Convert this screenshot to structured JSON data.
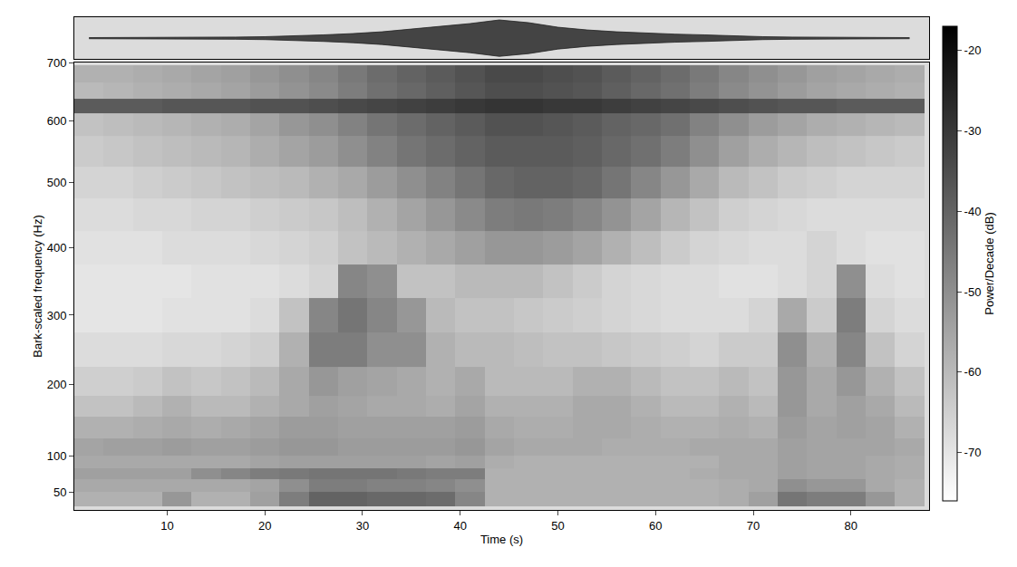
{
  "chart_data": {
    "type": "heatmap",
    "x_label": "Time (s)",
    "y_label": "Bark-scaled frequency (Hz)",
    "xlim": [
      0.5,
      88
    ],
    "ylim": [
      25,
      700
    ],
    "xticks": [
      10,
      20,
      30,
      40,
      50,
      60,
      70,
      80
    ],
    "yticks": [
      50,
      100,
      200,
      300,
      400,
      500,
      600,
      700
    ],
    "grid": false,
    "x": [
      2,
      5,
      8,
      11,
      14,
      17,
      20,
      23,
      26,
      29,
      32,
      35,
      38,
      41,
      44,
      47,
      50,
      53,
      56,
      59,
      62,
      65,
      68,
      71,
      74,
      77,
      80,
      83,
      86
    ],
    "y": [
      40,
      60,
      75,
      90,
      110,
      140,
      170,
      200,
      250,
      300,
      350,
      400,
      450,
      500,
      550,
      600,
      625,
      650,
      680
    ],
    "z": [
      [
        -58,
        -58,
        -58,
        -52,
        -58,
        -58,
        -54,
        -46,
        -40,
        -40,
        -41,
        -41,
        -42,
        -48,
        -58,
        -58,
        -58,
        -58,
        -58,
        -58,
        -58,
        -58,
        -57,
        -54,
        -44,
        -46,
        -46,
        -52,
        -58
      ],
      [
        -56,
        -56,
        -56,
        -56,
        -56,
        -56,
        -55,
        -50,
        -46,
        -46,
        -47,
        -47,
        -48,
        -50,
        -58,
        -58,
        -58,
        -58,
        -58,
        -58,
        -58,
        -58,
        -57,
        -56,
        -50,
        -52,
        -52,
        -56,
        -58
      ],
      [
        -54,
        -54,
        -54,
        -54,
        -50,
        -48,
        -46,
        -45,
        -44,
        -44,
        -44,
        -45,
        -46,
        -46,
        -58,
        -58,
        -58,
        -58,
        -58,
        -58,
        -58,
        -57,
        -56,
        -56,
        -54,
        -55,
        -55,
        -56,
        -57
      ],
      [
        -56,
        -56,
        -56,
        -56,
        -56,
        -56,
        -55,
        -54,
        -54,
        -54,
        -54,
        -54,
        -55,
        -54,
        -57,
        -58,
        -58,
        -58,
        -58,
        -58,
        -58,
        -58,
        -56,
        -56,
        -54,
        -55,
        -55,
        -56,
        -57
      ],
      [
        -55,
        -54,
        -54,
        -53,
        -54,
        -54,
        -53,
        -52,
        -52,
        -53,
        -53,
        -53,
        -53,
        -52,
        -55,
        -56,
        -56,
        -56,
        -57,
        -57,
        -57,
        -56,
        -56,
        -56,
        -54,
        -55,
        -55,
        -55,
        -56
      ],
      [
        -58,
        -58,
        -57,
        -56,
        -57,
        -56,
        -55,
        -53,
        -53,
        -54,
        -54,
        -54,
        -54,
        -53,
        -56,
        -57,
        -57,
        -56,
        -56,
        -57,
        -58,
        -58,
        -57,
        -58,
        -53,
        -55,
        -54,
        -55,
        -58
      ],
      [
        -62,
        -62,
        -60,
        -58,
        -60,
        -60,
        -58,
        -56,
        -54,
        -55,
        -56,
        -56,
        -57,
        -55,
        -58,
        -58,
        -58,
        -56,
        -56,
        -58,
        -60,
        -60,
        -58,
        -60,
        -52,
        -56,
        -54,
        -56,
        -60
      ],
      [
        -65,
        -65,
        -64,
        -62,
        -63,
        -62,
        -60,
        -56,
        -52,
        -54,
        -55,
        -56,
        -58,
        -56,
        -60,
        -60,
        -60,
        -58,
        -58,
        -60,
        -62,
        -62,
        -60,
        -62,
        -52,
        -56,
        -52,
        -58,
        -62
      ],
      [
        -68,
        -68,
        -68,
        -67,
        -67,
        -66,
        -65,
        -58,
        -46,
        -46,
        -50,
        -50,
        -58,
        -60,
        -60,
        -61,
        -62,
        -62,
        -63,
        -64,
        -65,
        -66,
        -64,
        -64,
        -50,
        -58,
        -48,
        -62,
        -66
      ],
      [
        -70,
        -70,
        -70,
        -69,
        -69,
        -69,
        -68,
        -62,
        -48,
        -44,
        -48,
        -52,
        -60,
        -62,
        -62,
        -63,
        -64,
        -65,
        -66,
        -67,
        -68,
        -68,
        -68,
        -66,
        -56,
        -64,
        -46,
        -66,
        -68
      ],
      [
        -70,
        -70,
        -70,
        -70,
        -69,
        -69,
        -69,
        -68,
        -66,
        -48,
        -50,
        -62,
        -62,
        -60,
        -60,
        -60,
        -62,
        -64,
        -66,
        -67,
        -68,
        -68,
        -69,
        -69,
        -68,
        -66,
        -50,
        -68,
        -69
      ],
      [
        -69,
        -69,
        -69,
        -68,
        -68,
        -68,
        -67,
        -66,
        -65,
        -62,
        -60,
        -58,
        -56,
        -54,
        -52,
        -52,
        -53,
        -55,
        -58,
        -61,
        -64,
        -66,
        -67,
        -68,
        -68,
        -66,
        -68,
        -69,
        -69
      ],
      [
        -68,
        -68,
        -67,
        -67,
        -66,
        -66,
        -65,
        -64,
        -63,
        -61,
        -58,
        -55,
        -52,
        -49,
        -46,
        -45,
        -46,
        -48,
        -51,
        -55,
        -59,
        -62,
        -65,
        -66,
        -67,
        -68,
        -68,
        -68,
        -68
      ],
      [
        -66,
        -66,
        -65,
        -64,
        -63,
        -62,
        -61,
        -60,
        -58,
        -56,
        -53,
        -50,
        -47,
        -44,
        -41,
        -40,
        -40,
        -41,
        -44,
        -48,
        -52,
        -56,
        -60,
        -62,
        -64,
        -65,
        -66,
        -66,
        -66
      ],
      [
        -64,
        -63,
        -62,
        -61,
        -60,
        -59,
        -57,
        -55,
        -53,
        -50,
        -47,
        -44,
        -42,
        -40,
        -38,
        -38,
        -38,
        -39,
        -41,
        -43,
        -46,
        -50,
        -54,
        -57,
        -59,
        -61,
        -62,
        -63,
        -64
      ],
      [
        -62,
        -61,
        -60,
        -59,
        -58,
        -57,
        -55,
        -52,
        -50,
        -47,
        -44,
        -42,
        -40,
        -38,
        -36,
        -36,
        -37,
        -38,
        -40,
        -41,
        -43,
        -47,
        -50,
        -53,
        -55,
        -57,
        -58,
        -59,
        -60
      ],
      [
        -38,
        -38,
        -38,
        -37,
        -37,
        -37,
        -36,
        -36,
        -35,
        -34,
        -33,
        -32,
        -31,
        -30,
        -29,
        -29,
        -30,
        -30,
        -31,
        -32,
        -33,
        -34,
        -35,
        -36,
        -37,
        -37,
        -38,
        -38,
        -38
      ],
      [
        -60,
        -59,
        -58,
        -57,
        -56,
        -55,
        -53,
        -51,
        -49,
        -46,
        -43,
        -41,
        -39,
        -37,
        -35,
        -35,
        -36,
        -37,
        -39,
        -41,
        -43,
        -46,
        -49,
        -51,
        -53,
        -55,
        -56,
        -57,
        -58
      ],
      [
        -58,
        -58,
        -57,
        -56,
        -55,
        -54,
        -52,
        -50,
        -48,
        -45,
        -42,
        -40,
        -38,
        -36,
        -34,
        -34,
        -35,
        -36,
        -38,
        -40,
        -42,
        -45,
        -48,
        -50,
        -52,
        -54,
        -55,
        -56,
        -57
      ]
    ],
    "colorbar": {
      "title": "Power/Decade (dB)",
      "range": [
        -76,
        -17
      ],
      "ticks": [
        -20,
        -30,
        -40,
        -50,
        -60,
        -70
      ]
    },
    "waveform": {
      "x": [
        2,
        5,
        8,
        11,
        14,
        17,
        20,
        23,
        26,
        29,
        32,
        35,
        38,
        41,
        44,
        47,
        50,
        53,
        56,
        59,
        62,
        65,
        68,
        71,
        74,
        77,
        80,
        83,
        86
      ],
      "values": [
        0.03,
        0.03,
        0.03,
        0.04,
        0.05,
        0.06,
        0.08,
        0.12,
        0.18,
        0.25,
        0.35,
        0.5,
        0.65,
        0.8,
        1.0,
        0.85,
        0.6,
        0.45,
        0.35,
        0.28,
        0.22,
        0.18,
        0.12,
        0.08,
        0.06,
        0.05,
        0.04,
        0.03,
        0.03
      ]
    }
  }
}
